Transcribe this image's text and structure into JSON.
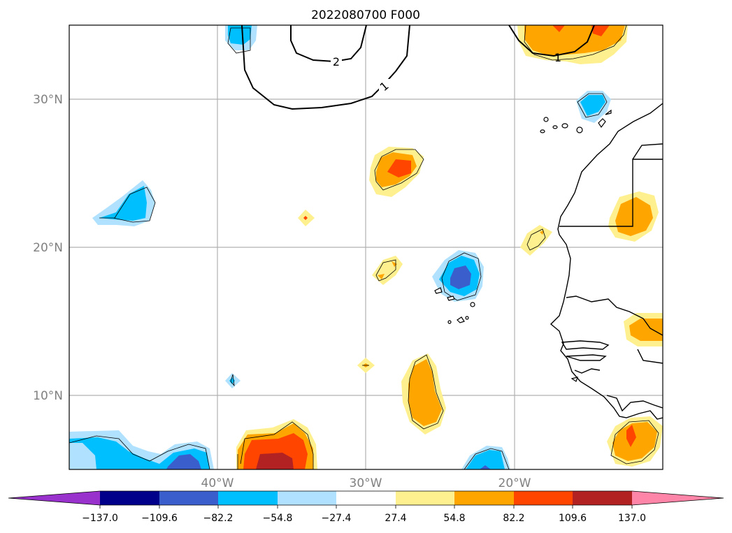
{
  "title": "2022080700 F000",
  "map": {
    "lat_labels": [
      "30°N",
      "20°N",
      "10°N"
    ],
    "lon_labels": [
      "40°W",
      "30°W",
      "20°W"
    ],
    "contour_labels": [
      "2",
      "1",
      "1"
    ]
  },
  "colorbar": {
    "colors": [
      "#9932cc",
      "#00008b",
      "#3a5fcd",
      "#00bfff",
      "#b0e2ff",
      "#ffffff",
      "#fff08f",
      "#ffa500",
      "#ff4500",
      "#b22222",
      "#ff85a8"
    ],
    "tick_labels": [
      "−137.0",
      "−109.6",
      "−82.2",
      "−54.8",
      "−27.4",
      "27.4",
      "54.8",
      "82.2",
      "109.6",
      "137.0"
    ]
  }
}
